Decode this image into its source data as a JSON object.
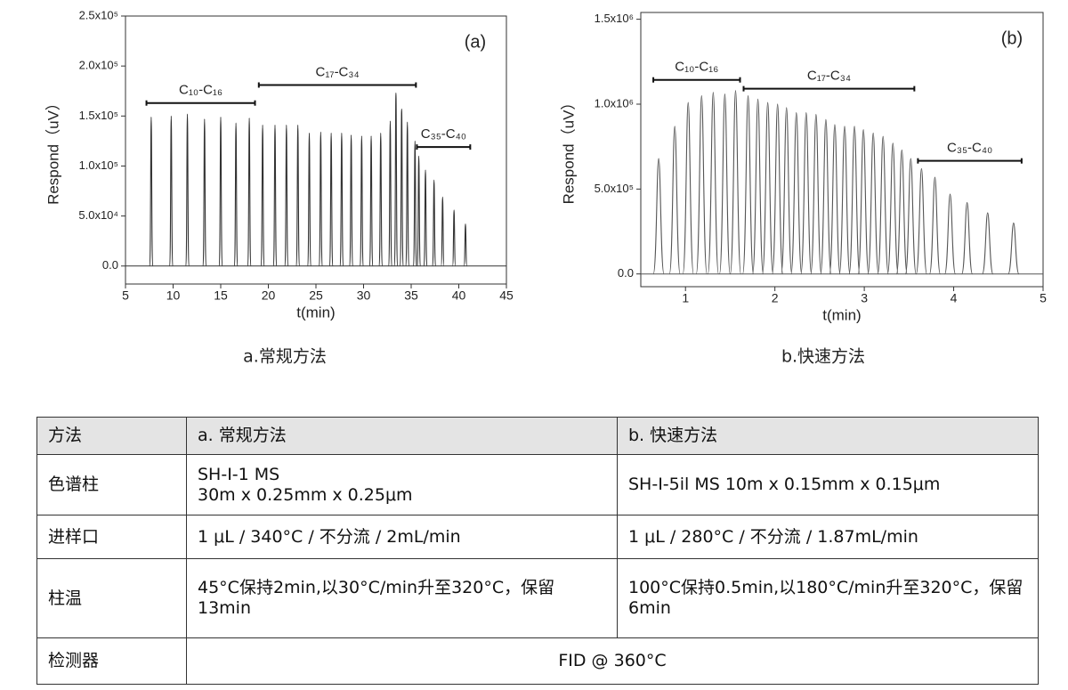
{
  "chart_data": [
    {
      "type": "chromatogram",
      "panel_label": "(a)",
      "caption": "a.常规方法",
      "xlabel": "t(min)",
      "ylabel": "Respond（uV）",
      "color": "#333333",
      "x": [
        7.7,
        9.8,
        11.5,
        13.3,
        15.0,
        16.6,
        18.0,
        19.4,
        20.7,
        21.9,
        23.1,
        24.3,
        25.5,
        26.6,
        27.7,
        28.7,
        29.8,
        30.8,
        31.8,
        32.8,
        33.4,
        34.0,
        34.6,
        35.4,
        35.8,
        36.5,
        37.4,
        38.3,
        39.5,
        40.7
      ],
      "values": [
        149000,
        150000,
        152000,
        147000,
        149000,
        143000,
        148000,
        141000,
        141000,
        141000,
        141000,
        133000,
        134000,
        133000,
        133000,
        131000,
        130000,
        130000,
        133000,
        145000,
        173000,
        157000,
        144000,
        125000,
        110000,
        96000,
        86000,
        69000,
        56000,
        42000
      ],
      "xlim": [
        5,
        45
      ],
      "xticks": [
        5,
        10,
        15,
        20,
        25,
        30,
        35,
        40,
        45
      ],
      "ylim": [
        -18000,
        250000
      ],
      "yticks": [
        {
          "value": 0,
          "label": "0.0"
        },
        {
          "value": 50000,
          "label": "5.0x10⁴"
        },
        {
          "value": 100000,
          "label": "1.0x10⁵"
        },
        {
          "value": 150000,
          "label": "1.5x10⁵"
        },
        {
          "value": 200000,
          "label": "2.0x10⁵"
        },
        {
          "value": 250000,
          "label": "2.5x10⁵"
        }
      ],
      "annotations": [
        {
          "text": "C₁₀-C₁₆",
          "xrange": [
            7.2,
            18.6
          ],
          "y": 163000
        },
        {
          "text": "C₁₇-C₃₄",
          "xrange": [
            19.0,
            35.5
          ],
          "y": 181000
        },
        {
          "text": "C₃₅-C₄₀",
          "xrange": [
            35.6,
            41.2
          ],
          "y": 119000
        }
      ]
    },
    {
      "type": "chromatogram",
      "panel_label": "(b)",
      "caption": "b.快速方法",
      "xlabel": "t(min)",
      "ylabel": "Respond（uV）",
      "color": "#555555",
      "x": [
        0.7,
        0.88,
        1.03,
        1.18,
        1.31,
        1.44,
        1.56,
        1.7,
        1.81,
        1.92,
        2.03,
        2.13,
        2.24,
        2.35,
        2.46,
        2.57,
        2.67,
        2.78,
        2.89,
        2.99,
        3.1,
        3.21,
        3.32,
        3.42,
        3.52,
        3.64,
        3.79,
        3.96,
        4.15,
        4.38,
        4.67
      ],
      "values": [
        680000,
        870000,
        1010000,
        1050000,
        1070000,
        1060000,
        1080000,
        1050000,
        1030000,
        1010000,
        1000000,
        980000,
        950000,
        950000,
        940000,
        910000,
        880000,
        870000,
        870000,
        850000,
        830000,
        810000,
        770000,
        730000,
        680000,
        620000,
        570000,
        470000,
        420000,
        360000,
        300000
      ],
      "xlim": [
        0.5,
        5
      ],
      "xticks": [
        1,
        2,
        3,
        4,
        5
      ],
      "ylim": [
        -75000,
        1540000
      ],
      "yticks": [
        {
          "value": 0,
          "label": "0.0"
        },
        {
          "value": 500000,
          "label": "5.0x10⁵"
        },
        {
          "value": 1000000,
          "label": "1.0x10⁶"
        },
        {
          "value": 1500000,
          "label": "1.5x10⁶"
        }
      ],
      "annotations": [
        {
          "text": "C₁₀-C₁₆",
          "xrange": [
            0.64,
            1.61
          ],
          "y": 1143000
        },
        {
          "text": "C₁₇-C₃₄",
          "xrange": [
            1.65,
            3.56
          ],
          "y": 1091000
        },
        {
          "text": "C₃₅-C₄₀",
          "xrange": [
            3.6,
            4.76
          ],
          "y": 666000
        }
      ]
    }
  ],
  "table": {
    "header": [
      "方法",
      "a. 常规方法",
      "b. 快速方法"
    ],
    "rows": [
      [
        "色谱柱",
        "SH-I-1 MS\n30m x 0.25mm x 0.25μm",
        "SH-I-5il MS 10m x 0.15mm x 0.15μm"
      ],
      [
        "进样口",
        "1 μL / 340°C / 不分流 / 2mL/min",
        "1 μL / 280°C / 不分流 / 1.87mL/min"
      ],
      [
        "柱温",
        "45°C保持2min,以30°C/min升至320°C，保留13min",
        "100°C保持0.5min,以180°C/min升至320°C，保留6min"
      ],
      [
        "检测器",
        "FID @ 360°C"
      ]
    ]
  }
}
